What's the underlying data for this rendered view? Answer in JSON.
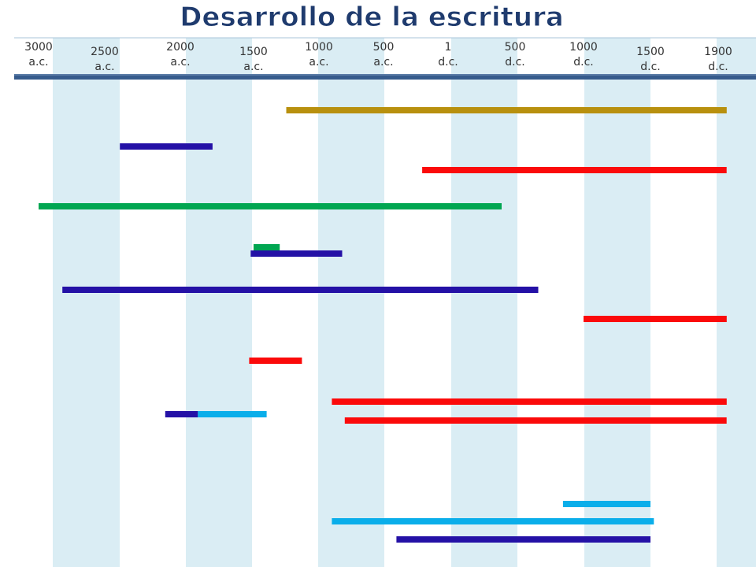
{
  "chart_data": {
    "type": "timeline",
    "title": "Desarrollo de la escritura",
    "xlabel": "",
    "ylabel": "",
    "xlim": [
      -3300,
      1950
    ],
    "grid": "alternating-columns",
    "ticks": [
      {
        "value": -3000,
        "line1": "3000",
        "line2": "a.c."
      },
      {
        "value": -2500,
        "line1": "2500",
        "line2": "a.c."
      },
      {
        "value": -2000,
        "line1": "2000",
        "line2": "a.c."
      },
      {
        "value": -1500,
        "line1": "1500",
        "line2": "a.c."
      },
      {
        "value": -1000,
        "line1": "1000",
        "line2": "a.c."
      },
      {
        "value": -500,
        "line1": "500",
        "line2": "a.c."
      },
      {
        "value": 1,
        "line1": "1",
        "line2": "d.c."
      },
      {
        "value": 500,
        "line1": "500",
        "line2": "d.c."
      },
      {
        "value": 1000,
        "line1": "1000",
        "line2": "d.c."
      },
      {
        "value": 1500,
        "line1": "1500",
        "line2": "d.c."
      },
      {
        "value": 1900,
        "line1": "1900",
        "line2": "d.c."
      }
    ],
    "bars": [
      {
        "row": 1,
        "start": -1250,
        "end": 1950,
        "color": "#b8900e"
      },
      {
        "row": 2,
        "start": -2400,
        "end": -1780,
        "color": "#2411a6"
      },
      {
        "row": 3,
        "start": -200,
        "end": 1950,
        "color": "#fb0a0a"
      },
      {
        "row": 4,
        "start": -3000,
        "end": 400,
        "color": "#00a651"
      },
      {
        "row": 5,
        "start": -1500,
        "end": -1300,
        "color": "#00a651"
      },
      {
        "row": 6,
        "start": -1520,
        "end": -820,
        "color": "#2411a6"
      },
      {
        "row": 7,
        "start": -2820,
        "end": 670,
        "color": "#2411a6"
      },
      {
        "row": 8,
        "start": 1000,
        "end": 1950,
        "color": "#fb0a0a"
      },
      {
        "row": 9,
        "start": -1530,
        "end": -1130,
        "color": "#fb0a0a"
      },
      {
        "row": 10,
        "start": -900,
        "end": 1950,
        "color": "#fb0a0a"
      },
      {
        "row": 11,
        "start": -2100,
        "end": -1880,
        "color": "#2411a6"
      },
      {
        "row": 11,
        "start": -1880,
        "end": -1400,
        "color": "#0aaeea"
      },
      {
        "row": 12,
        "start": -800,
        "end": 1950,
        "color": "#fb0a0a"
      },
      {
        "row": 13,
        "start": 850,
        "end": 1500,
        "color": "#0aaeea"
      },
      {
        "row": 14,
        "start": -900,
        "end": 1520,
        "color": "#0aaeea"
      },
      {
        "row": 15,
        "start": -400,
        "end": 1500,
        "color": "#2411a6"
      }
    ]
  }
}
